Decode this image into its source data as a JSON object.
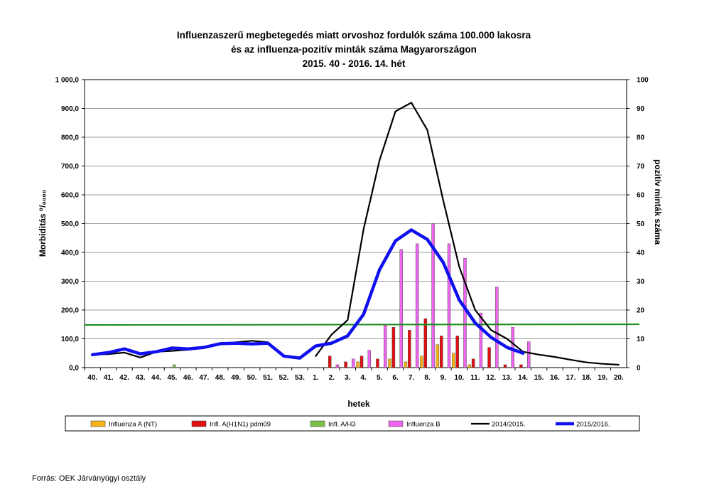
{
  "chart_data": {
    "type": "bar",
    "title": [
      "Influenzaszerű megbetegedés miatt orvoshoz fordulók száma 100.000 lakosra",
      "és az influenza-pozitív minták száma Magyarországon",
      "2015. 40 - 2016. 14. hét"
    ],
    "xlabel": "hetek",
    "ylabel": "Morbiditás ⁰/₀₀₀₀",
    "y2label": "pozitív minták száma",
    "ylim": [
      0,
      1000
    ],
    "y2lim": [
      0,
      100
    ],
    "yticks": [
      "0,0",
      "100,0",
      "200,0",
      "300,0",
      "400,0",
      "500,0",
      "600,0",
      "700,0",
      "800,0",
      "900,0",
      "1 000,0"
    ],
    "y2ticks": [
      "0",
      "10",
      "20",
      "30",
      "40",
      "50",
      "60",
      "70",
      "80",
      "90",
      "100"
    ],
    "grid": true,
    "legend_position": "bottom",
    "categories": [
      "40.",
      "41.",
      "42.",
      "43.",
      "44.",
      "45.",
      "46.",
      "47.",
      "48.",
      "49.",
      "50.",
      "51.",
      "52.",
      "53.",
      "1.",
      "2.",
      "3.",
      "4.",
      "5.",
      "6.",
      "7.",
      "8.",
      "9.",
      "10.",
      "11.",
      "12.",
      "13.",
      "14.",
      "15.",
      "16.",
      "17.",
      "18.",
      "19.",
      "20."
    ],
    "bar_series": [
      {
        "name": "Influenza A (NT)",
        "color": "#F5B418",
        "axis": "right",
        "values": [
          0,
          0,
          0,
          0,
          0,
          0,
          0,
          0,
          0,
          0,
          0,
          0,
          0,
          0,
          0,
          0,
          0,
          2,
          0,
          3,
          2,
          4,
          8,
          5,
          1,
          0,
          0,
          0,
          0,
          0,
          0,
          0,
          0,
          0
        ]
      },
      {
        "name": "Infl. A(H1N1) pdm09",
        "color": "#DD1111",
        "axis": "right",
        "values": [
          0,
          0,
          0,
          0,
          0,
          0,
          0,
          0,
          0,
          0,
          0,
          0,
          0,
          0,
          0,
          4,
          2,
          4,
          3,
          14,
          13,
          17,
          11,
          11,
          3,
          7,
          1,
          1,
          0,
          0,
          0,
          0,
          0,
          0
        ]
      },
      {
        "name": "Infl. A/H3",
        "color": "#7CC04A",
        "axis": "right",
        "values": [
          0,
          0,
          0,
          0,
          0,
          1,
          0,
          0,
          0,
          0,
          0,
          0,
          0,
          0,
          0,
          0,
          0,
          0,
          0,
          0,
          0,
          0,
          0,
          0,
          0,
          0,
          0,
          0,
          0,
          0,
          0,
          0,
          0,
          0
        ]
      },
      {
        "name": "Influenza B",
        "color": "#EE66EE",
        "axis": "right",
        "values": [
          0,
          0,
          0,
          0,
          0,
          0,
          0,
          0,
          0,
          0,
          0,
          0,
          0,
          0,
          0,
          1,
          3,
          6,
          15,
          41,
          43,
          50,
          43,
          38,
          19,
          28,
          14,
          9,
          0,
          0,
          0,
          0,
          0,
          0
        ]
      }
    ],
    "line_series": [
      {
        "name": "2014/2015.",
        "color": "#000000",
        "axis": "left",
        "values": [
          45,
          47,
          52,
          35,
          55,
          58,
          62,
          70,
          82,
          88,
          93,
          88,
          null,
          null,
          40,
          115,
          165,
          480,
          720,
          890,
          920,
          825,
          580,
          350,
          200,
          130,
          100,
          55,
          45,
          37,
          27,
          18,
          13,
          10
        ]
      },
      {
        "name": "2015/2016.",
        "color": "#1010EE",
        "axis": "left",
        "values": [
          45,
          52,
          65,
          48,
          55,
          68,
          65,
          70,
          83,
          85,
          82,
          85,
          40,
          33,
          75,
          85,
          110,
          185,
          340,
          440,
          478,
          445,
          365,
          235,
          155,
          105,
          70,
          50,
          null,
          null,
          null,
          null,
          null,
          null
        ]
      }
    ],
    "threshold": {
      "value": 148,
      "color": "#1A8A1A",
      "axis": "left"
    }
  },
  "source": "Forrás: OEK Járványügyi osztály"
}
